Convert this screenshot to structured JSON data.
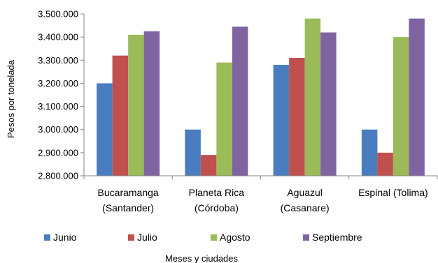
{
  "chart_data": {
    "type": "bar",
    "ylabel": "Pesos por tonelada",
    "xlabel": "Meses y ciudades",
    "ylim": [
      2800000,
      3500000
    ],
    "ytick_step": 100000,
    "ytick_labels": [
      "2.800.000",
      "2.900.000",
      "3.000.000",
      "3.100.000",
      "3.200.000",
      "3.300.000",
      "3.400.000",
      "3.500.000"
    ],
    "categories": [
      {
        "line1": "Bucaramanga",
        "line2": "(Santander)"
      },
      {
        "line1": "Planeta Rica",
        "line2": "(Córdoba)"
      },
      {
        "line1": "Aguazul",
        "line2": "(Casanare)"
      },
      {
        "line1": "Espinal (Tolima)",
        "line2": ""
      }
    ],
    "series": [
      {
        "name": "Junio",
        "color": "#4a7dbf",
        "values": [
          3200000,
          3000000,
          3280000,
          3000000
        ]
      },
      {
        "name": "Julio",
        "color": "#c0504d",
        "values": [
          3320000,
          2890000,
          3310000,
          2900000
        ]
      },
      {
        "name": "Agosto",
        "color": "#9bbb59",
        "values": [
          3410000,
          3290000,
          3480000,
          3400000
        ]
      },
      {
        "name": "Septiembre",
        "color": "#8064a2",
        "values": [
          3425000,
          3445000,
          3420000,
          3480000
        ]
      }
    ],
    "legend_position": "bottom",
    "grid": false
  }
}
